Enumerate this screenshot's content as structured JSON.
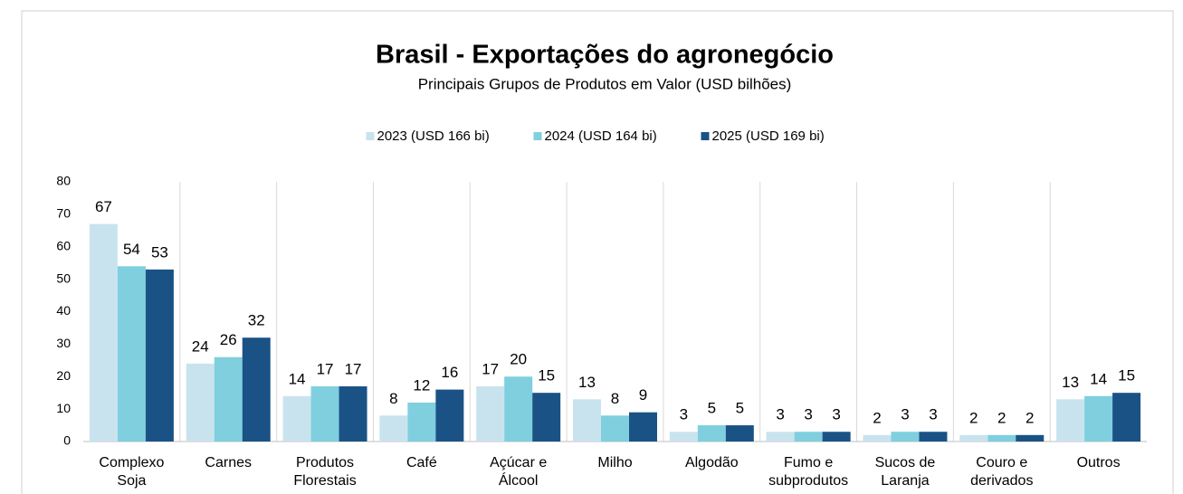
{
  "chart_data": {
    "type": "bar",
    "title": "Brasil - Exportações do agronegócio",
    "subtitle": "Principais Grupos de Produtos em Valor (USD bilhões)",
    "categories": [
      "Complexo\nSoja",
      "Carnes",
      "Produtos\nFlorestais",
      "Café",
      "Açúcar e\nÁlcool",
      "Milho",
      "Algodão",
      "Fumo e\nsubprodutos",
      "Sucos de\nLaranja",
      "Couro e\nderivados",
      "Outros"
    ],
    "series": [
      {
        "name": "2023 (USD 166 bi)",
        "color": "#c9e3ee",
        "values": [
          67,
          24,
          14,
          8,
          17,
          13,
          3,
          3,
          2,
          2,
          13
        ]
      },
      {
        "name": "2024 (USD 164 bi)",
        "color": "#7fcfdf",
        "values": [
          54,
          26,
          17,
          12,
          20,
          8,
          5,
          3,
          3,
          2,
          14
        ]
      },
      {
        "name": "2025 (USD 169 bi)",
        "color": "#1a5286",
        "values": [
          53,
          32,
          17,
          16,
          15,
          9,
          5,
          3,
          3,
          2,
          15
        ]
      }
    ],
    "ylim": [
      0,
      80
    ],
    "yticks": [
      0,
      10,
      20,
      30,
      40,
      50,
      60,
      70,
      80
    ],
    "legend": "top",
    "grid": false
  }
}
